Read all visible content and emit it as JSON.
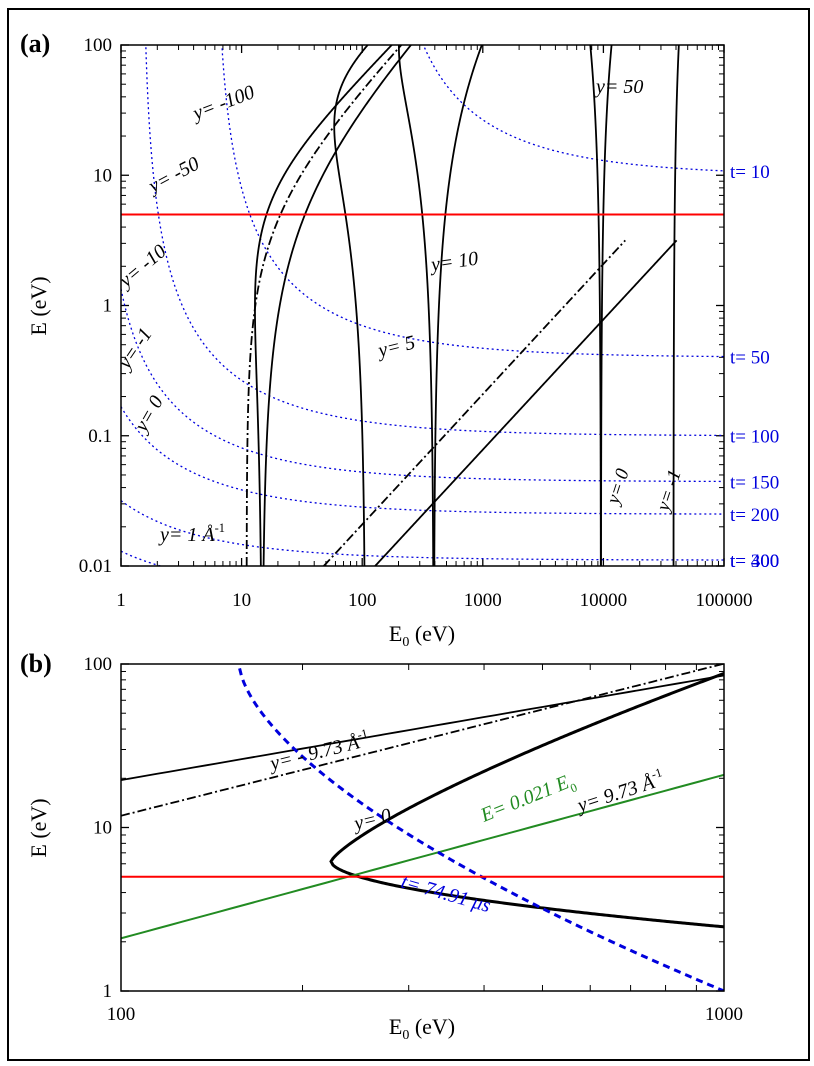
{
  "chart_data": [
    {
      "panel_label": "(a)",
      "type": "line",
      "xscale": "log",
      "yscale": "log",
      "xlim": [
        1,
        100000
      ],
      "ylim": [
        0.01,
        100
      ],
      "xlabel_main": "E",
      "xlabel_sub": "0",
      "xlabel_unit": " (eV)",
      "ylabel": "E (eV)",
      "xticks": [
        1,
        10,
        100,
        1000,
        10000,
        100000
      ],
      "xticklabels": [
        "1",
        "10",
        "100",
        "1000",
        "10000",
        "100000"
      ],
      "yticks": [
        0.01,
        0.1,
        1,
        10,
        100
      ],
      "yticklabels": [
        "0.01",
        "0.1",
        "1",
        "10",
        "100"
      ],
      "hline": {
        "y": 5,
        "color": "#ff0000"
      },
      "t_curves": {
        "color": "#0000dd",
        "series": [
          {
            "label": "t= 10",
            "t": 10
          },
          {
            "label": "t= 50",
            "t": 50
          },
          {
            "label": "t= 100",
            "t": 100
          },
          {
            "label": "t= 150",
            "t": 150
          },
          {
            "label": "t= 200",
            "t": 200
          },
          {
            "label": "t= 300",
            "t": 300
          },
          {
            "label": "t= 400",
            "t": 400
          }
        ]
      },
      "y_curves": {
        "color": "#000000",
        "series": [
          {
            "name": "y=-100",
            "label": "y= -100",
            "y": -100,
            "style": "solid"
          },
          {
            "name": "y=-50",
            "label": "y= -50",
            "y": -50,
            "style": "solid"
          },
          {
            "name": "y=-10",
            "label": "y= -10",
            "y": -10,
            "style": "solid"
          },
          {
            "name": "y=-1",
            "label": "y= -1",
            "y": -1,
            "style": "solid"
          },
          {
            "name": "y=0",
            "label": "y= 0",
            "y": 0,
            "style": "dashdot"
          },
          {
            "name": "y=1",
            "label": "y= 1 Å",
            "label_sup": "-1",
            "y": 1,
            "style": "solid"
          },
          {
            "name": "y=5",
            "label": "y= 5",
            "y": 5,
            "style": "solid"
          },
          {
            "name": "y=10",
            "label": "y= 10",
            "y": 10,
            "style": "solid"
          },
          {
            "name": "y=50",
            "label": "y= 50",
            "y": 50,
            "style": "solid"
          }
        ],
        "lower_right_labels": [
          {
            "name": "y=0-lower",
            "label": "y= 0"
          },
          {
            "name": "y=-1-lower",
            "label": "y= -1"
          }
        ]
      }
    },
    {
      "panel_label": "(b)",
      "type": "line",
      "xscale": "log",
      "yscale": "log",
      "xlim": [
        100,
        1000
      ],
      "ylim": [
        1,
        100
      ],
      "xlabel_main": "E",
      "xlabel_sub": "0",
      "xlabel_unit": " (eV)",
      "ylabel": "E (eV)",
      "xticks": [
        100,
        1000
      ],
      "xticklabels": [
        "100",
        "1000"
      ],
      "yticks": [
        1,
        10,
        100
      ],
      "yticklabels": [
        "1",
        "10",
        "100"
      ],
      "hline": {
        "y": 5,
        "color": "#ff0000"
      },
      "series": [
        {
          "name": "y=-9.73",
          "label": "y= - 9.73 Å",
          "label_sup": "-1",
          "y": -9.73,
          "style": "solid",
          "color": "#000000"
        },
        {
          "name": "y=0",
          "label": "y= 0",
          "y": 0,
          "style": "dashdot",
          "color": "#000000"
        },
        {
          "name": "y=9.73",
          "label": "y= 9.73 Å",
          "label_sup": "-1",
          "y": 9.73,
          "style": "solid-thick",
          "color": "#000000"
        },
        {
          "name": "E=0.021E0",
          "label": "E= 0.021 E",
          "label_sub": "0",
          "slope": 0.021,
          "style": "solid",
          "color": "#228b22"
        },
        {
          "name": "t=74.91",
          "label": "t= 74.91 μs",
          "t": 74.91,
          "style": "dashed-thick",
          "color": "#0000dd"
        }
      ]
    }
  ]
}
